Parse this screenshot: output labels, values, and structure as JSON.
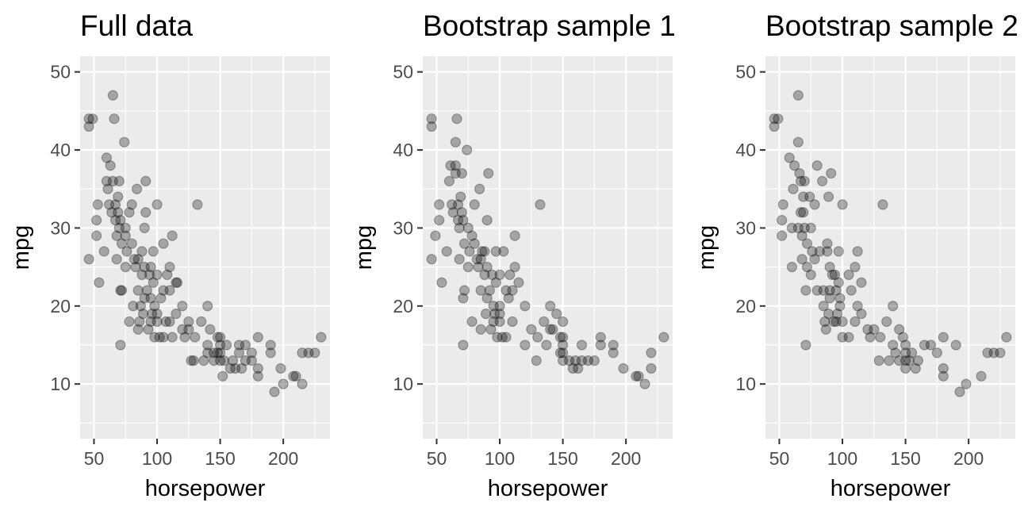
{
  "colors": {
    "panel": "#ebebeb",
    "grid": "#ffffff",
    "point": "#000000",
    "tick_text": "#4d4d4d"
  },
  "chart_data": [
    {
      "type": "scatter",
      "title": "Full data",
      "xlabel": "horsepower",
      "ylabel": "mpg",
      "xlim": [
        39,
        237
      ],
      "ylim": [
        3,
        52
      ],
      "xticks": [
        50,
        100,
        150,
        200
      ],
      "yticks": [
        10,
        20,
        30,
        40,
        50
      ],
      "grid": true,
      "points": [
        [
          46,
          26
        ],
        [
          46,
          43
        ],
        [
          46,
          44
        ],
        [
          49,
          44
        ],
        [
          52,
          29
        ],
        [
          52,
          31
        ],
        [
          53,
          33
        ],
        [
          54,
          23
        ],
        [
          58,
          27
        ],
        [
          60,
          36
        ],
        [
          60,
          39
        ],
        [
          61,
          35
        ],
        [
          62,
          33
        ],
        [
          63,
          38
        ],
        [
          64,
          32
        ],
        [
          65,
          36
        ],
        [
          65,
          47
        ],
        [
          66,
          44
        ],
        [
          67,
          31
        ],
        [
          67,
          33
        ],
        [
          68,
          29
        ],
        [
          68,
          26
        ],
        [
          69,
          34
        ],
        [
          69,
          32
        ],
        [
          70,
          36
        ],
        [
          70,
          30
        ],
        [
          71,
          31
        ],
        [
          71,
          22
        ],
        [
          71,
          15
        ],
        [
          72,
          28
        ],
        [
          72,
          22
        ],
        [
          74,
          41
        ],
        [
          75,
          30
        ],
        [
          75,
          25
        ],
        [
          75,
          29
        ],
        [
          76,
          27
        ],
        [
          78,
          32
        ],
        [
          78,
          18
        ],
        [
          80,
          33
        ],
        [
          80,
          28
        ],
        [
          81,
          20
        ],
        [
          82,
          26
        ],
        [
          83,
          25
        ],
        [
          84,
          35
        ],
        [
          85,
          17
        ],
        [
          85,
          22
        ],
        [
          85,
          26
        ],
        [
          86,
          18
        ],
        [
          87,
          20
        ],
        [
          88,
          24
        ],
        [
          88,
          27
        ],
        [
          89,
          19
        ],
        [
          90,
          30
        ],
        [
          90,
          25
        ],
        [
          90,
          21
        ],
        [
          91,
          36
        ],
        [
          91,
          32
        ],
        [
          92,
          22
        ],
        [
          93,
          17
        ],
        [
          94,
          24
        ],
        [
          95,
          21
        ],
        [
          95,
          18
        ],
        [
          95,
          25
        ],
        [
          96,
          19
        ],
        [
          97,
          23
        ],
        [
          97,
          27
        ],
        [
          98,
          16
        ],
        [
          98,
          20
        ],
        [
          100,
          19
        ],
        [
          100,
          18
        ],
        [
          100,
          24
        ],
        [
          100,
          33
        ],
        [
          102,
          16
        ],
        [
          103,
          21
        ],
        [
          105,
          22
        ],
        [
          105,
          28
        ],
        [
          105,
          16
        ],
        [
          107,
          18
        ],
        [
          108,
          24
        ],
        [
          110,
          18
        ],
        [
          110,
          22
        ],
        [
          110,
          25
        ],
        [
          112,
          29
        ],
        [
          112,
          16
        ],
        [
          115,
          23
        ],
        [
          115,
          19
        ],
        [
          116,
          23
        ],
        [
          120,
          20
        ],
        [
          120,
          17
        ],
        [
          122,
          16
        ],
        [
          125,
          17
        ],
        [
          125,
          18
        ],
        [
          127,
          13
        ],
        [
          129,
          13
        ],
        [
          130,
          16
        ],
        [
          132,
          33
        ],
        [
          135,
          18
        ],
        [
          137,
          13
        ],
        [
          140,
          20
        ],
        [
          140,
          15
        ],
        [
          140,
          14
        ],
        [
          142,
          17
        ],
        [
          145,
          14
        ],
        [
          145,
          13
        ],
        [
          148,
          16
        ],
        [
          148,
          14
        ],
        [
          150,
          15
        ],
        [
          150,
          14
        ],
        [
          150,
          13
        ],
        [
          150,
          16
        ],
        [
          152,
          11
        ],
        [
          153,
          13
        ],
        [
          155,
          15
        ],
        [
          158,
          12
        ],
        [
          160,
          13
        ],
        [
          162,
          12
        ],
        [
          165,
          15
        ],
        [
          165,
          14
        ],
        [
          167,
          12
        ],
        [
          170,
          13
        ],
        [
          170,
          15
        ],
        [
          175,
          14
        ],
        [
          175,
          13
        ],
        [
          180,
          12
        ],
        [
          180,
          16
        ],
        [
          180,
          11
        ],
        [
          190,
          15
        ],
        [
          190,
          14
        ],
        [
          193,
          9
        ],
        [
          198,
          12
        ],
        [
          200,
          10
        ],
        [
          208,
          11
        ],
        [
          210,
          11
        ],
        [
          215,
          10
        ],
        [
          215,
          14
        ],
        [
          220,
          14
        ],
        [
          225,
          14
        ],
        [
          230,
          16
        ]
      ]
    },
    {
      "type": "scatter",
      "title": "Bootstrap sample 1",
      "xlabel": "horsepower",
      "ylabel": "mpg",
      "xlim": [
        39,
        237
      ],
      "ylim": [
        3,
        52
      ],
      "xticks": [
        50,
        100,
        150,
        200
      ],
      "yticks": [
        10,
        20,
        30,
        40,
        50
      ],
      "grid": true,
      "points": [
        [
          46,
          26
        ],
        [
          46,
          43
        ],
        [
          46,
          44
        ],
        [
          49,
          29
        ],
        [
          52,
          31
        ],
        [
          52,
          33
        ],
        [
          54,
          23
        ],
        [
          58,
          27
        ],
        [
          60,
          36
        ],
        [
          61,
          38
        ],
        [
          62,
          33
        ],
        [
          63,
          32
        ],
        [
          65,
          38
        ],
        [
          65,
          41
        ],
        [
          65,
          37
        ],
        [
          66,
          44
        ],
        [
          67,
          31
        ],
        [
          67,
          33
        ],
        [
          68,
          30
        ],
        [
          68,
          26
        ],
        [
          69,
          34
        ],
        [
          70,
          37
        ],
        [
          70,
          32
        ],
        [
          71,
          31
        ],
        [
          71,
          21
        ],
        [
          71,
          15
        ],
        [
          72,
          28
        ],
        [
          72,
          22
        ],
        [
          74,
          40
        ],
        [
          75,
          30
        ],
        [
          75,
          25
        ],
        [
          76,
          27
        ],
        [
          78,
          29
        ],
        [
          78,
          18
        ],
        [
          80,
          33
        ],
        [
          80,
          28
        ],
        [
          82,
          26
        ],
        [
          83,
          25
        ],
        [
          84,
          35
        ],
        [
          85,
          17
        ],
        [
          85,
          22
        ],
        [
          85,
          26
        ],
        [
          86,
          27
        ],
        [
          88,
          24
        ],
        [
          88,
          27
        ],
        [
          89,
          19
        ],
        [
          90,
          31
        ],
        [
          90,
          25
        ],
        [
          90,
          21
        ],
        [
          91,
          37
        ],
        [
          92,
          22
        ],
        [
          93,
          17
        ],
        [
          94,
          24
        ],
        [
          95,
          20
        ],
        [
          95,
          18
        ],
        [
          96,
          19
        ],
        [
          97,
          23
        ],
        [
          97,
          27
        ],
        [
          98,
          16
        ],
        [
          100,
          19
        ],
        [
          100,
          18
        ],
        [
          100,
          24
        ],
        [
          100,
          20
        ],
        [
          102,
          16
        ],
        [
          103,
          27
        ],
        [
          105,
          22
        ],
        [
          105,
          16
        ],
        [
          107,
          21
        ],
        [
          108,
          24
        ],
        [
          110,
          18
        ],
        [
          110,
          22
        ],
        [
          112,
          29
        ],
        [
          112,
          25
        ],
        [
          115,
          23
        ],
        [
          120,
          20
        ],
        [
          120,
          15
        ],
        [
          125,
          17
        ],
        [
          129,
          13
        ],
        [
          130,
          16
        ],
        [
          132,
          33
        ],
        [
          135,
          18
        ],
        [
          137,
          15
        ],
        [
          140,
          20
        ],
        [
          140,
          17
        ],
        [
          142,
          17
        ],
        [
          145,
          19
        ],
        [
          148,
          16
        ],
        [
          148,
          14
        ],
        [
          150,
          15
        ],
        [
          150,
          14
        ],
        [
          150,
          13
        ],
        [
          150,
          16
        ],
        [
          150,
          18
        ],
        [
          155,
          13
        ],
        [
          158,
          12
        ],
        [
          160,
          13
        ],
        [
          162,
          12
        ],
        [
          165,
          13
        ],
        [
          165,
          15
        ],
        [
          170,
          13
        ],
        [
          175,
          13
        ],
        [
          180,
          16
        ],
        [
          180,
          15
        ],
        [
          190,
          15
        ],
        [
          190,
          14
        ],
        [
          198,
          12
        ],
        [
          208,
          11
        ],
        [
          210,
          11
        ],
        [
          215,
          10
        ],
        [
          220,
          12
        ],
        [
          220,
          14
        ],
        [
          230,
          16
        ]
      ]
    },
    {
      "type": "scatter",
      "title": "Bootstrap sample 2",
      "xlabel": "horsepower",
      "ylabel": "mpg",
      "xlim": [
        39,
        237
      ],
      "ylim": [
        3,
        52
      ],
      "xticks": [
        50,
        100,
        150,
        200
      ],
      "yticks": [
        10,
        20,
        30,
        40,
        50
      ],
      "grid": true,
      "points": [
        [
          46,
          43
        ],
        [
          46,
          44
        ],
        [
          49,
          44
        ],
        [
          52,
          29
        ],
        [
          52,
          31
        ],
        [
          53,
          33
        ],
        [
          58,
          39
        ],
        [
          60,
          30
        ],
        [
          60,
          25
        ],
        [
          61,
          35
        ],
        [
          62,
          38
        ],
        [
          65,
          41
        ],
        [
          65,
          30
        ],
        [
          65,
          47
        ],
        [
          66,
          37
        ],
        [
          67,
          36
        ],
        [
          67,
          32
        ],
        [
          68,
          29
        ],
        [
          68,
          26
        ],
        [
          69,
          34
        ],
        [
          69,
          32
        ],
        [
          70,
          36
        ],
        [
          70,
          30
        ],
        [
          71,
          22
        ],
        [
          71,
          15
        ],
        [
          72,
          28
        ],
        [
          72,
          25
        ],
        [
          74,
          34
        ],
        [
          75,
          30
        ],
        [
          75,
          24
        ],
        [
          76,
          27
        ],
        [
          78,
          33
        ],
        [
          78,
          26
        ],
        [
          80,
          38
        ],
        [
          80,
          22
        ],
        [
          82,
          27
        ],
        [
          84,
          36
        ],
        [
          85,
          20
        ],
        [
          85,
          22
        ],
        [
          86,
          18
        ],
        [
          87,
          17
        ],
        [
          88,
          28
        ],
        [
          88,
          27
        ],
        [
          89,
          34
        ],
        [
          89,
          19
        ],
        [
          90,
          25
        ],
        [
          90,
          22
        ],
        [
          90,
          21
        ],
        [
          91,
          37
        ],
        [
          92,
          24
        ],
        [
          93,
          18
        ],
        [
          94,
          24
        ],
        [
          95,
          22
        ],
        [
          95,
          18
        ],
        [
          96,
          19
        ],
        [
          97,
          23
        ],
        [
          97,
          27
        ],
        [
          98,
          20
        ],
        [
          98,
          21
        ],
        [
          100,
          18
        ],
        [
          100,
          16
        ],
        [
          100,
          33
        ],
        [
          105,
          24
        ],
        [
          105,
          16
        ],
        [
          107,
          22
        ],
        [
          110,
          18
        ],
        [
          110,
          25
        ],
        [
          112,
          27
        ],
        [
          112,
          20
        ],
        [
          115,
          23
        ],
        [
          115,
          19
        ],
        [
          120,
          17
        ],
        [
          122,
          16
        ],
        [
          125,
          17
        ],
        [
          129,
          13
        ],
        [
          130,
          16
        ],
        [
          132,
          33
        ],
        [
          135,
          18
        ],
        [
          137,
          13
        ],
        [
          140,
          20
        ],
        [
          140,
          15
        ],
        [
          142,
          14
        ],
        [
          145,
          17
        ],
        [
          145,
          13
        ],
        [
          148,
          16
        ],
        [
          150,
          15
        ],
        [
          150,
          14
        ],
        [
          150,
          13
        ],
        [
          150,
          12
        ],
        [
          153,
          13
        ],
        [
          155,
          14
        ],
        [
          158,
          12
        ],
        [
          160,
          13
        ],
        [
          165,
          15
        ],
        [
          170,
          15
        ],
        [
          175,
          14
        ],
        [
          180,
          12
        ],
        [
          180,
          16
        ],
        [
          180,
          11
        ],
        [
          190,
          15
        ],
        [
          193,
          9
        ],
        [
          198,
          10
        ],
        [
          210,
          11
        ],
        [
          215,
          14
        ],
        [
          220,
          14
        ],
        [
          225,
          14
        ],
        [
          230,
          16
        ]
      ]
    }
  ]
}
